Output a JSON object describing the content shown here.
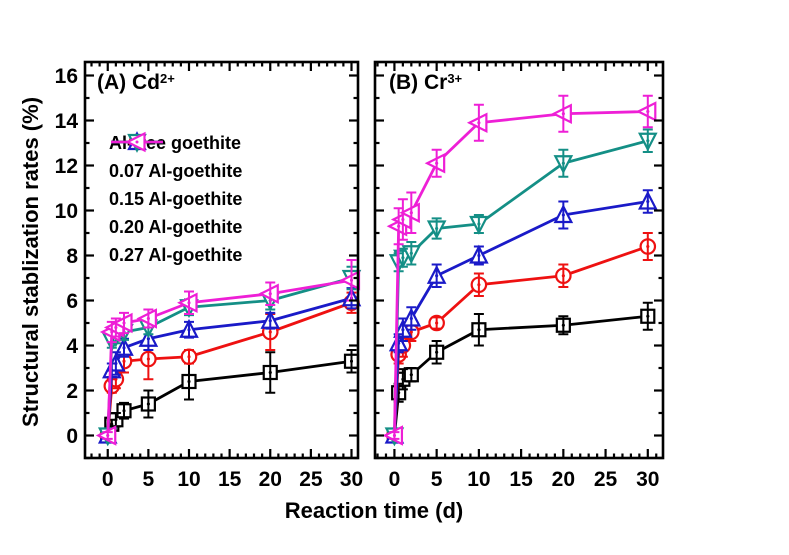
{
  "chart_data": {
    "type": "line",
    "x": [
      0,
      0.5,
      1,
      2,
      5,
      10,
      20,
      30
    ],
    "xlabel": "Reaction time (d)",
    "ylabel": "Structural stablization rates (%)",
    "ylim": [
      -1,
      16.6
    ],
    "yticks": [
      0,
      2,
      4,
      6,
      8,
      10,
      12,
      14,
      16
    ],
    "xticks": [
      0,
      5,
      10,
      15,
      20,
      25,
      30
    ],
    "grid": false,
    "error_bars": true,
    "legend": {
      "position": "upper left of panel A",
      "items": [
        "Al-free goethite",
        "0.07 Al-goethite",
        "0.15 Al-goethite",
        "0.20 Al-goethite",
        "0.27 Al-goethite"
      ]
    },
    "colors": {
      "al_free": "#000000",
      "al_007": "#ee1111",
      "al_015": "#1a1ac8",
      "al_020": "#148f86",
      "al_027": "#ee1fd6"
    },
    "panels": [
      {
        "id": "A",
        "title": "(A) Cd",
        "title_sup": "2+",
        "xlim": [
          -2.8,
          30.8
        ],
        "series": [
          {
            "name": "Al-free goethite",
            "color": "#000000",
            "marker": "square",
            "values": [
              0,
              0.5,
              0.7,
              1.1,
              1.4,
              2.4,
              2.8,
              3.3
            ],
            "errors": [
              0.1,
              0.2,
              0.3,
              0.35,
              0.6,
              0.8,
              0.9,
              0.5
            ]
          },
          {
            "name": "0.07 Al-goethite",
            "color": "#ee1111",
            "marker": "circle",
            "values": [
              0,
              2.2,
              2.5,
              3.3,
              3.4,
              3.5,
              4.6,
              5.9
            ],
            "errors": [
              0.1,
              0.3,
              0.4,
              0.5,
              0.9,
              0.3,
              0.8,
              0.45
            ]
          },
          {
            "name": "0.15 Al-goethite",
            "color": "#1a1ac8",
            "marker": "triangle-up",
            "values": [
              0,
              2.9,
              3.2,
              3.9,
              4.3,
              4.7,
              5.1,
              6.1
            ],
            "errors": [
              0.1,
              0.3,
              0.5,
              0.4,
              0.5,
              0.35,
              0.35,
              0.45
            ]
          },
          {
            "name": "0.20 Al-goethite",
            "color": "#148f86",
            "marker": "triangle-down",
            "values": [
              0,
              4.2,
              4.4,
              4.6,
              4.8,
              5.7,
              6.0,
              7.0
            ],
            "errors": [
              0.1,
              0.3,
              0.3,
              0.35,
              0.3,
              0.35,
              0.4,
              0.5
            ]
          },
          {
            "name": "0.27 Al-goethite",
            "color": "#ee1fd6",
            "marker": "triangle-left",
            "values": [
              0,
              4.6,
              4.8,
              5.0,
              5.2,
              5.9,
              6.3,
              6.9
            ],
            "errors": [
              0.15,
              0.45,
              0.4,
              0.45,
              0.4,
              0.5,
              0.5,
              0.9
            ]
          }
        ]
      },
      {
        "id": "B",
        "title": "(B) Cr",
        "title_sup": "3+",
        "xlim": [
          -2.3,
          31.8
        ],
        "series": [
          {
            "name": "Al-free goethite",
            "color": "#000000",
            "marker": "square",
            "values": [
              0,
              1.9,
              2.5,
              2.7,
              3.7,
              4.7,
              4.9,
              5.3
            ],
            "errors": [
              0.1,
              0.4,
              0.45,
              0.3,
              0.5,
              0.7,
              0.4,
              0.6
            ]
          },
          {
            "name": "0.07 Al-goethite",
            "color": "#ee1111",
            "marker": "circle",
            "values": [
              0,
              3.6,
              4.0,
              4.6,
              5.0,
              6.7,
              7.1,
              8.4
            ],
            "errors": [
              0.1,
              0.4,
              0.5,
              0.4,
              0.25,
              0.5,
              0.5,
              0.6
            ]
          },
          {
            "name": "0.15 Al-goethite",
            "color": "#1a1ac8",
            "marker": "triangle-up",
            "values": [
              0,
              4.1,
              4.7,
              5.2,
              7.1,
              8.0,
              9.8,
              10.4
            ],
            "errors": [
              0.1,
              0.4,
              0.5,
              0.5,
              0.5,
              0.4,
              0.6,
              0.5
            ]
          },
          {
            "name": "0.20 Al-goethite",
            "color": "#148f86",
            "marker": "triangle-down",
            "values": [
              0,
              7.7,
              7.9,
              8.1,
              9.2,
              9.4,
              12.1,
              13.1
            ],
            "errors": [
              0.15,
              0.4,
              0.4,
              0.5,
              0.45,
              0.4,
              0.6,
              0.5
            ]
          },
          {
            "name": "0.27 Al-goethite",
            "color": "#ee1fd6",
            "marker": "triangle-left",
            "values": [
              0,
              9.3,
              9.6,
              9.9,
              12.1,
              13.9,
              14.3,
              14.4
            ],
            "errors": [
              0.15,
              0.8,
              0.9,
              0.9,
              0.6,
              0.8,
              0.8,
              0.7
            ]
          }
        ]
      }
    ]
  }
}
